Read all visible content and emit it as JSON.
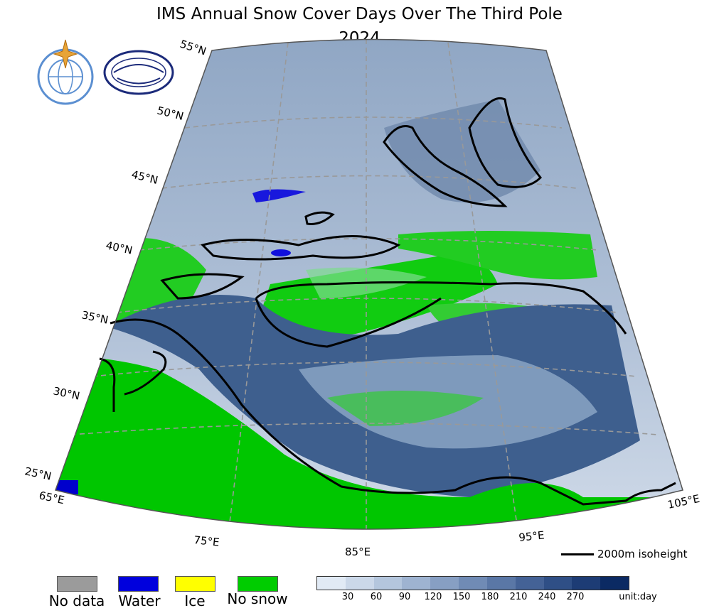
{
  "title": "IMS Annual Snow Cover Days Over The Third Pole",
  "year": "2024",
  "logos": [
    {
      "name": "WMO",
      "icon": "wmo-emblem-icon"
    },
    {
      "name": "NCC",
      "icon": "ncc-logo-icon"
    }
  ],
  "lat_labels": [
    "55°N",
    "50°N",
    "45°N",
    "40°N",
    "35°N",
    "30°N",
    "25°N"
  ],
  "lon_labels": [
    "65°E",
    "75°E",
    "85°E",
    "95°E",
    "105°E"
  ],
  "isoheight_label": "2000m isoheight",
  "category_legend": [
    {
      "label": "No data",
      "color": "#9b9b9b"
    },
    {
      "label": "Water",
      "color": "#0000dd"
    },
    {
      "label": "Ice",
      "color": "#ffff00"
    },
    {
      "label": "No snow",
      "color": "#00cc00"
    }
  ],
  "colorbar": {
    "colors": [
      "#e1eaf5",
      "#cbd8e9",
      "#b4c6dd",
      "#9eb3d1",
      "#879fc3",
      "#708bb5",
      "#5a77a6",
      "#446296",
      "#2f4f86",
      "#1d3c75",
      "#0b2a63"
    ],
    "ticks": [
      "30",
      "60",
      "90",
      "120",
      "150",
      "180",
      "210",
      "240",
      "270"
    ],
    "unit": "unit:day"
  }
}
